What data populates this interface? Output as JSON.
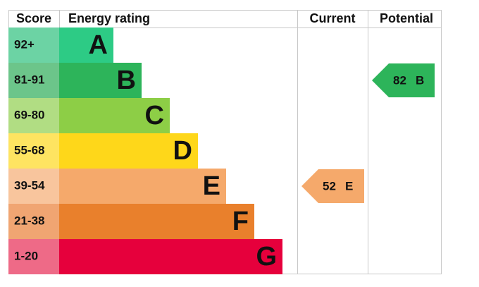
{
  "headers": {
    "score": "Score",
    "rating": "Energy rating",
    "current": "Current",
    "potential": "Potential"
  },
  "bands": [
    {
      "score": "92+",
      "letter": "A",
      "color": "#2dcb85",
      "score_color": "#6cd3a4"
    },
    {
      "score": "81-91",
      "letter": "B",
      "color": "#2db45a",
      "score_color": "#6cc58a"
    },
    {
      "score": "69-80",
      "letter": "C",
      "color": "#8dce46",
      "score_color": "#b1dd83"
    },
    {
      "score": "55-68",
      "letter": "D",
      "color": "#fed71a",
      "score_color": "#fee461"
    },
    {
      "score": "39-54",
      "letter": "E",
      "color": "#f5a96b",
      "score_color": "#f8c59d"
    },
    {
      "score": "21-38",
      "letter": "F",
      "color": "#e9802c",
      "score_color": "#f0a572"
    },
    {
      "score": "1-20",
      "letter": "G",
      "color": "#e6003c",
      "score_color": "#ee6a87"
    }
  ],
  "current": {
    "value": 52,
    "rating": "E"
  },
  "potential": {
    "value": 82,
    "rating": "B"
  }
}
